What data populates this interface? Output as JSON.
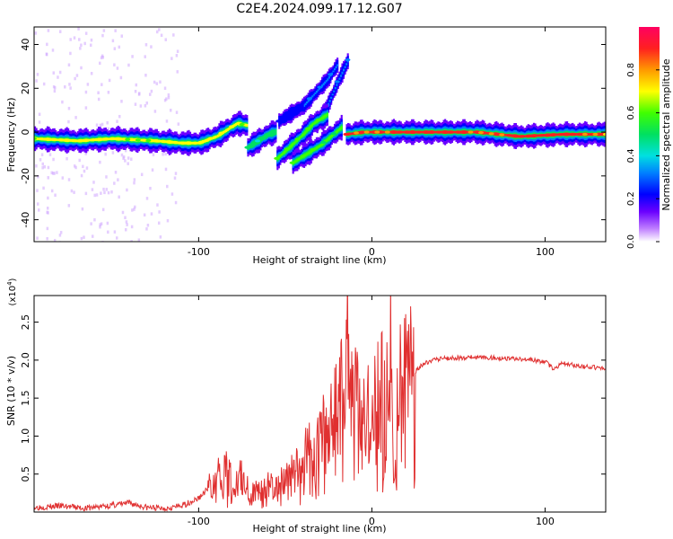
{
  "title": "C2E4.2024.099.17.12.G07",
  "chart_data": [
    {
      "type": "heatmap",
      "xlabel": "Height of straight line (km)",
      "ylabel": "Frequency (Hz)",
      "xlim": [
        -195,
        135
      ],
      "ylim": [
        -50,
        48
      ],
      "xticks": [
        -100,
        0,
        100
      ],
      "xtick_labels": [
        "-100",
        "0",
        "100"
      ],
      "yticks": [
        -40,
        -20,
        0,
        20,
        40
      ],
      "ytick_labels": [
        "-40",
        "-20",
        "0",
        "20",
        "40"
      ],
      "colorbar": {
        "label": "Normalized spectral amplitude",
        "range": [
          0,
          1
        ],
        "ticks": [
          0,
          0.2,
          0.4,
          0.6,
          0.8
        ],
        "tick_labels": [
          "0.0",
          "0.2",
          "0.4",
          "0.6",
          "0.8"
        ]
      },
      "ridges": [
        {
          "x": [
            -195,
            -170,
            -150,
            -125,
            -110,
            -100,
            -90,
            -82,
            -78,
            -72
          ],
          "y": [
            -3,
            -4,
            -3,
            -4,
            -5,
            -5,
            -2,
            2,
            4,
            3
          ],
          "amp": 0.7
        },
        {
          "x": [
            -72,
            -66,
            -60,
            -56
          ],
          "y": [
            -7,
            -4,
            -1,
            0
          ],
          "amp": 0.5
        },
        {
          "x": [
            -55,
            -48,
            -40,
            -34,
            -26
          ],
          "y": [
            -12,
            -7,
            -1,
            4,
            8
          ],
          "amp": 0.6
        },
        {
          "x": [
            -46,
            -38,
            -30,
            -24,
            -18
          ],
          "y": [
            -14,
            -10,
            -6,
            -2,
            2
          ],
          "amp": 0.6
        },
        {
          "x": [
            -15,
            -5,
            10,
            30,
            60,
            85,
            110,
            135
          ],
          "y": [
            -1,
            0,
            0,
            0,
            0,
            -2,
            -1,
            -1
          ],
          "amp": 0.9
        }
      ],
      "faint_branches": [
        {
          "x": [
            -42,
            -34,
            -26,
            -20
          ],
          "y": [
            10,
            17,
            24,
            31
          ],
          "amp": 0.25
        },
        {
          "x": [
            -32,
            -26,
            -20,
            -14
          ],
          "y": [
            3,
            12,
            23,
            33
          ],
          "amp": 0.3
        },
        {
          "x": [
            -54,
            -46,
            -40
          ],
          "y": [
            5,
            9,
            12
          ],
          "amp": 0.2
        }
      ]
    },
    {
      "type": "line",
      "xlabel": "Height of straight line (km)",
      "ylabel": "SNR (10 * v/v)",
      "y_multiplier": "(x10",
      "y_multiplier_exp": "4",
      "y_multiplier_close": ")",
      "xlim": [
        -195,
        135
      ],
      "ylim": [
        0,
        2.85
      ],
      "xticks": [
        -100,
        0,
        100
      ],
      "xtick_labels": [
        "-100",
        "0",
        "100"
      ],
      "yticks": [
        0.5,
        1.0,
        1.5,
        2.0,
        2.5
      ],
      "ytick_labels": [
        "0.5",
        "1.0",
        "1.5",
        "2.0",
        "2.5"
      ],
      "color": "#e03030",
      "series": [
        {
          "x": [
            -195,
            -180,
            -165,
            -150,
            -140,
            -130,
            -120,
            -110,
            -100,
            -95,
            -90,
            -85,
            -80,
            -75,
            -70,
            -65,
            -60,
            -55,
            -50,
            -45,
            -40,
            -35,
            -32,
            -28,
            -24,
            -20,
            -17,
            -15,
            -14,
            -12,
            -10,
            -6,
            -3,
            0,
            3,
            6,
            8,
            10,
            11,
            12,
            13,
            15,
            18,
            22,
            26,
            30,
            35,
            40,
            50,
            60,
            70,
            80,
            90,
            100,
            105,
            110,
            120,
            130,
            135
          ],
          "y": [
            0.06,
            0.08,
            0.05,
            0.09,
            0.12,
            0.06,
            0.05,
            0.08,
            0.18,
            0.3,
            0.45,
            0.55,
            0.4,
            0.5,
            0.25,
            0.3,
            0.35,
            0.3,
            0.45,
            0.5,
            0.65,
            0.85,
            0.95,
            1.05,
            1.2,
            1.5,
            1.7,
            2.6,
            2.85,
            1.4,
            1.6,
            1.5,
            1.4,
            1.1,
            1.7,
            1.6,
            1.2,
            2.3,
            2.6,
            1.0,
            0.3,
            1.55,
            1.65,
            1.75,
            1.88,
            1.95,
            2.0,
            2.02,
            2.03,
            2.04,
            2.03,
            2.02,
            2.01,
            1.98,
            1.88,
            1.96,
            1.92,
            1.9,
            1.88
          ]
        }
      ]
    }
  ]
}
